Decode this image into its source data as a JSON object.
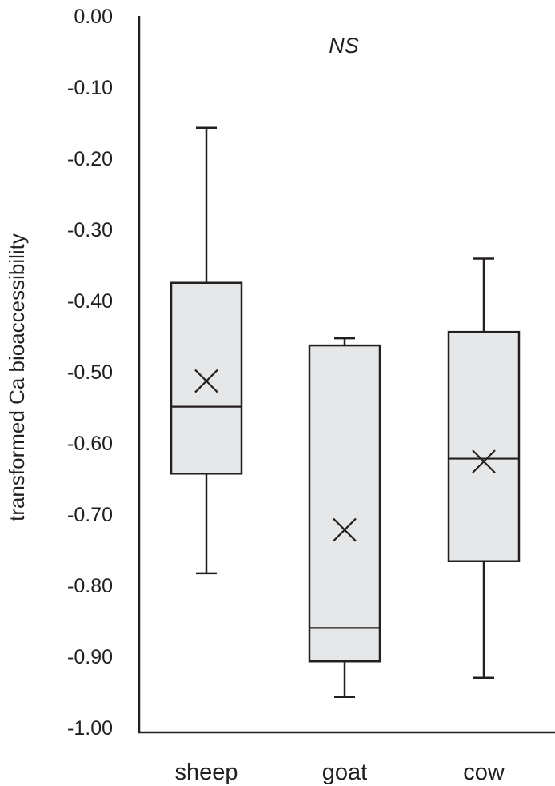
{
  "chart_data": {
    "type": "box",
    "title": "",
    "annotation": "NS",
    "xlabel": "",
    "ylabel": "transformed Ca bioaccessibility",
    "ylim": [
      -1.0,
      0.0
    ],
    "yticks": [
      0.0,
      -0.1,
      -0.2,
      -0.3,
      -0.4,
      -0.5,
      -0.6,
      -0.7,
      -0.8,
      -0.9,
      -1.0
    ],
    "ytick_labels": [
      "0.00",
      "-0.10",
      "-0.20",
      "-0.30",
      "-0.40",
      "-0.50",
      "-0.60",
      "-0.70",
      "-0.80",
      "-0.90",
      "-1.00"
    ],
    "grid": false,
    "legend": null,
    "categories": [
      "sheep",
      "goat",
      "cow"
    ],
    "series": [
      {
        "name": "sheep",
        "whisker_high": -0.157,
        "q3": -0.375,
        "median": -0.549,
        "mean": -0.513,
        "q1": -0.643,
        "whisker_low": -0.783
      },
      {
        "name": "goat",
        "whisker_high": -0.453,
        "q3": -0.463,
        "median": -0.86,
        "mean": -0.722,
        "q1": -0.907,
        "whisker_low": -0.957
      },
      {
        "name": "cow",
        "whisker_high": -0.341,
        "q3": -0.444,
        "median": -0.622,
        "mean": -0.626,
        "q1": -0.766,
        "whisker_low": -0.93
      }
    ],
    "colors": {
      "box_fill": "#e6e7e8",
      "stroke": "#231f20"
    }
  }
}
